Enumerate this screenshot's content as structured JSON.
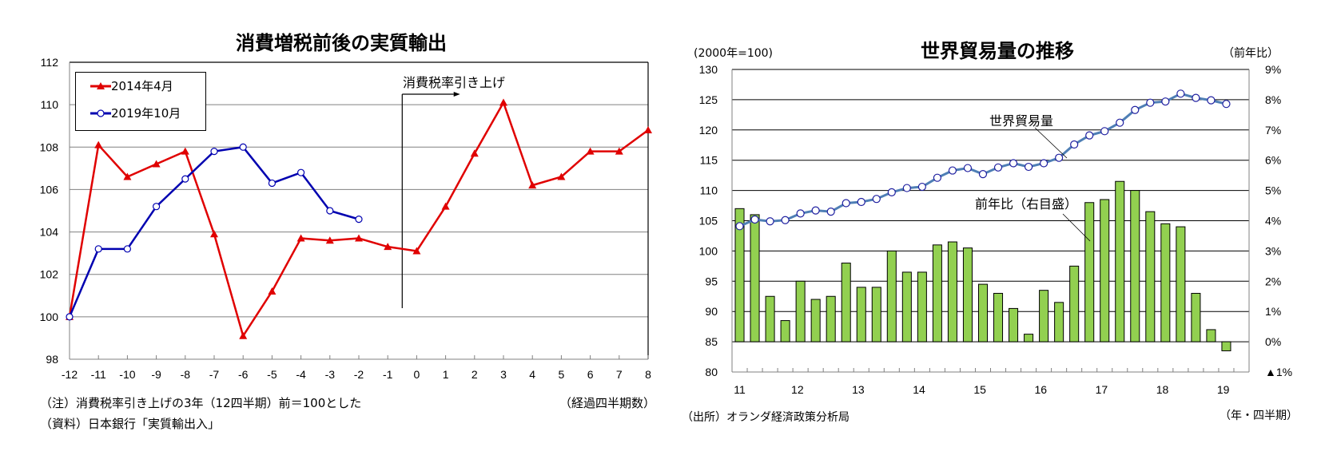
{
  "left": {
    "title": "消費増税前後の実質輸出",
    "annotation": "消費税率引き上げ",
    "x_unit": "（経過四半期数）",
    "notes": [
      "（注）消費税率引き上げの3年（12四半期）前＝100とした",
      "（資料）日本銀行「実質輸出入」"
    ],
    "legend": [
      {
        "label": "2014年4月",
        "color": "#e00000",
        "marker": "triangle"
      },
      {
        "label": "2019年10月",
        "color": "#0000b0",
        "marker": "circle"
      }
    ]
  },
  "right": {
    "title": "世界貿易量の推移",
    "left_unit": "(2000年=100)",
    "right_unit": "（前年比）",
    "x_unit": "（年・四半期）",
    "source": "（出所）オランダ経済政策分析局",
    "line_label": "世界貿易量",
    "bar_label": "前年比（右目盛）",
    "colors": {
      "bar": "#92d050",
      "line": "#4f7fb5",
      "marker": "#1f1fa0"
    }
  },
  "chart_data": [
    {
      "type": "line",
      "title": "消費増税前後の実質輸出",
      "xlabel": "（経過四半期数）",
      "ylabel": "",
      "x": [
        -12,
        -11,
        -10,
        -9,
        -8,
        -7,
        -6,
        -5,
        -4,
        -3,
        -2,
        -1,
        0,
        1,
        2,
        3,
        4,
        5,
        6,
        7,
        8
      ],
      "ylim": [
        98,
        112
      ],
      "yticks": [
        98,
        100,
        102,
        104,
        106,
        108,
        110,
        112
      ],
      "grid": true,
      "legend_position": "upper-left",
      "series": [
        {
          "name": "2014年4月",
          "values": [
            100.0,
            108.1,
            106.6,
            107.2,
            107.8,
            103.9,
            99.1,
            101.2,
            103.7,
            103.6,
            103.7,
            103.3,
            103.1,
            105.2,
            107.7,
            110.1,
            106.2,
            106.6,
            107.8,
            107.8,
            108.8
          ]
        },
        {
          "name": "2019年10月",
          "values": [
            100.0,
            103.2,
            103.2,
            105.2,
            106.5,
            107.8,
            108.0,
            106.3,
            106.8,
            105.0,
            104.6,
            null,
            null,
            null,
            null,
            null,
            null,
            null,
            null,
            null,
            null
          ]
        }
      ],
      "annotations": [
        {
          "text": "消費税率引き上げ",
          "at_x": -0.5
        }
      ]
    },
    {
      "type": "bar+line",
      "title": "世界貿易量の推移",
      "xlabel": "（年・四半期）",
      "ylabel_left": "(2000年=100)",
      "ylabel_right": "（前年比）",
      "categories": [
        "11Q1",
        "11Q2",
        "11Q3",
        "11Q4",
        "12Q1",
        "12Q2",
        "12Q3",
        "12Q4",
        "13Q1",
        "13Q2",
        "13Q3",
        "13Q4",
        "14Q1",
        "14Q2",
        "14Q3",
        "14Q4",
        "15Q1",
        "15Q2",
        "15Q3",
        "15Q4",
        "16Q1",
        "16Q2",
        "16Q3",
        "16Q4",
        "17Q1",
        "17Q2",
        "17Q3",
        "17Q4",
        "18Q1",
        "18Q2",
        "18Q3",
        "18Q4",
        "19Q1",
        "19Q2"
      ],
      "xtick_labels": [
        "11",
        "12",
        "13",
        "14",
        "15",
        "16",
        "17",
        "18",
        "19"
      ],
      "ylim_left": [
        80,
        130
      ],
      "yticks_left": [
        80,
        85,
        90,
        95,
        100,
        105,
        110,
        115,
        120,
        125,
        130
      ],
      "ylim_right": [
        -1,
        9
      ],
      "yticks_right": [
        "▲1%",
        "0%",
        "1%",
        "2%",
        "3%",
        "4%",
        "5%",
        "6%",
        "7%",
        "8%",
        "9%"
      ],
      "grid": true,
      "series": [
        {
          "name": "世界貿易量",
          "axis": "left",
          "type": "line",
          "values": [
            104.1,
            105.2,
            104.9,
            105.1,
            106.2,
            106.7,
            106.5,
            107.9,
            108.1,
            108.6,
            109.7,
            110.4,
            110.6,
            112.1,
            113.3,
            113.7,
            112.7,
            113.8,
            114.5,
            113.9,
            114.5,
            115.4,
            117.6,
            119.1,
            119.8,
            121.2,
            123.3,
            124.5,
            124.7,
            126.0,
            125.3,
            124.9,
            124.3,
            null
          ]
        },
        {
          "name": "前年比（右目盛）",
          "axis": "right",
          "type": "bar",
          "values": [
            4.4,
            4.2,
            1.5,
            0.7,
            2.0,
            1.4,
            1.5,
            2.6,
            1.8,
            1.8,
            3.0,
            2.3,
            2.3,
            3.2,
            3.3,
            3.1,
            1.9,
            1.6,
            1.1,
            0.25,
            1.7,
            1.3,
            2.5,
            4.6,
            4.7,
            5.3,
            5.0,
            4.3,
            3.9,
            3.8,
            1.6,
            0.4,
            -0.3,
            null
          ]
        }
      ]
    }
  ]
}
